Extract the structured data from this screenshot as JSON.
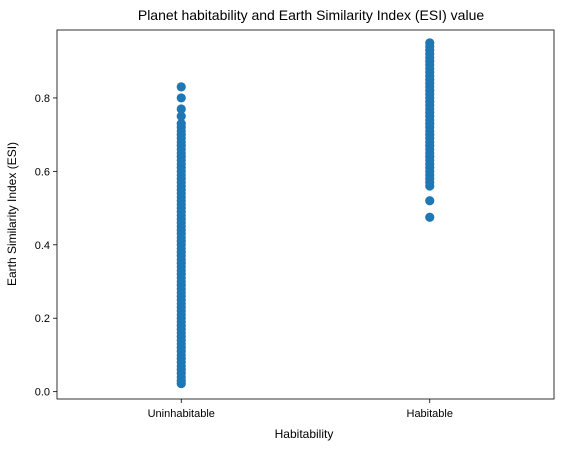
{
  "chart_data": {
    "type": "scatter",
    "title": "Planet habitability and Earth Similarity Index (ESI) value",
    "xlabel": "Habitability",
    "ylabel": "Earth Similarity Index (ESI)",
    "categories": [
      "Uninhabitable",
      "Habitable"
    ],
    "ylim": [
      -0.02,
      0.985
    ],
    "y_ticks": [
      "0.0",
      "0.2",
      "0.4",
      "0.6",
      "0.8"
    ],
    "grid": false,
    "legend": "none",
    "marker_color": "#1f77b4",
    "series": [
      {
        "category": "Uninhabitable",
        "values": [
          0.022,
          0.03,
          0.04,
          0.05,
          0.06,
          0.07,
          0.08,
          0.09,
          0.1,
          0.11,
          0.12,
          0.13,
          0.14,
          0.15,
          0.16,
          0.17,
          0.18,
          0.19,
          0.2,
          0.21,
          0.22,
          0.23,
          0.24,
          0.25,
          0.26,
          0.27,
          0.28,
          0.29,
          0.3,
          0.31,
          0.32,
          0.33,
          0.34,
          0.35,
          0.36,
          0.37,
          0.38,
          0.39,
          0.4,
          0.41,
          0.42,
          0.43,
          0.44,
          0.45,
          0.46,
          0.47,
          0.48,
          0.49,
          0.5,
          0.51,
          0.52,
          0.53,
          0.54,
          0.55,
          0.56,
          0.57,
          0.58,
          0.59,
          0.6,
          0.61,
          0.62,
          0.63,
          0.64,
          0.65,
          0.66,
          0.67,
          0.68,
          0.69,
          0.7,
          0.71,
          0.72,
          0.73,
          0.75,
          0.77,
          0.8,
          0.83
        ]
      },
      {
        "category": "Habitable",
        "values": [
          0.475,
          0.52,
          0.56,
          0.57,
          0.58,
          0.59,
          0.6,
          0.61,
          0.62,
          0.63,
          0.64,
          0.65,
          0.66,
          0.67,
          0.68,
          0.69,
          0.7,
          0.71,
          0.72,
          0.73,
          0.74,
          0.75,
          0.76,
          0.77,
          0.78,
          0.79,
          0.8,
          0.81,
          0.82,
          0.83,
          0.84,
          0.85,
          0.86,
          0.87,
          0.88,
          0.89,
          0.9,
          0.91,
          0.92,
          0.93,
          0.94,
          0.95
        ]
      }
    ]
  }
}
